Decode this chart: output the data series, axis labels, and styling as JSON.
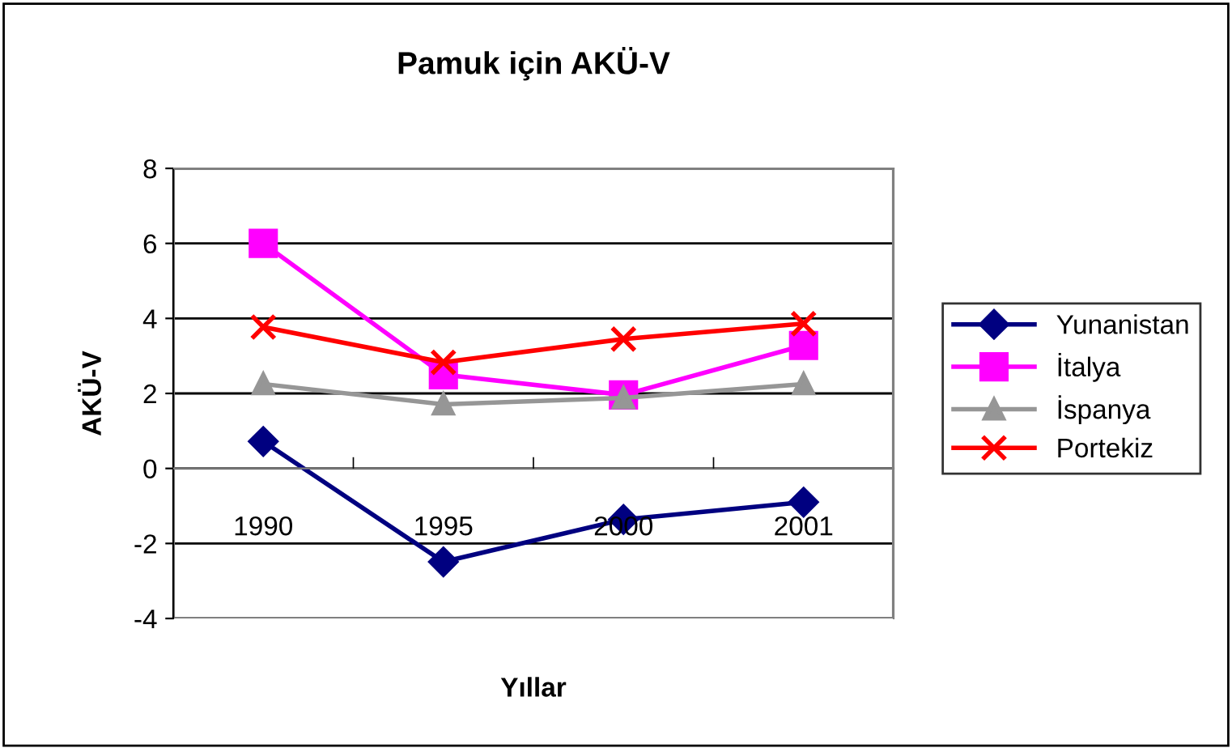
{
  "chart_data": {
    "type": "line",
    "title": "Pamuk için AKÜ-V",
    "xlabel": "Yıllar",
    "ylabel": "AKÜ-V",
    "categories": [
      "1990",
      "1995",
      "2000",
      "2001"
    ],
    "series": [
      {
        "name": "Yunanistan",
        "color": "#000080",
        "marker": "diamond",
        "values": [
          0.72,
          -2.49,
          -1.36,
          -0.9
        ]
      },
      {
        "name": "İtalya",
        "color": "#ff00ff",
        "marker": "square",
        "values": [
          6.0,
          2.5,
          1.96,
          3.28
        ]
      },
      {
        "name": "İspanya",
        "color": "#969696",
        "marker": "triangle",
        "values": [
          2.25,
          1.71,
          1.88,
          2.25
        ]
      },
      {
        "name": "Portekiz",
        "color": "#ff0000",
        "marker": "cross",
        "values": [
          3.77,
          2.83,
          3.45,
          3.86
        ]
      }
    ],
    "ylim": [
      -4,
      8
    ],
    "yticks": [
      -4,
      -2,
      0,
      2,
      4,
      6,
      8
    ],
    "grid": "y",
    "legend": "right",
    "line_style": "solid"
  }
}
